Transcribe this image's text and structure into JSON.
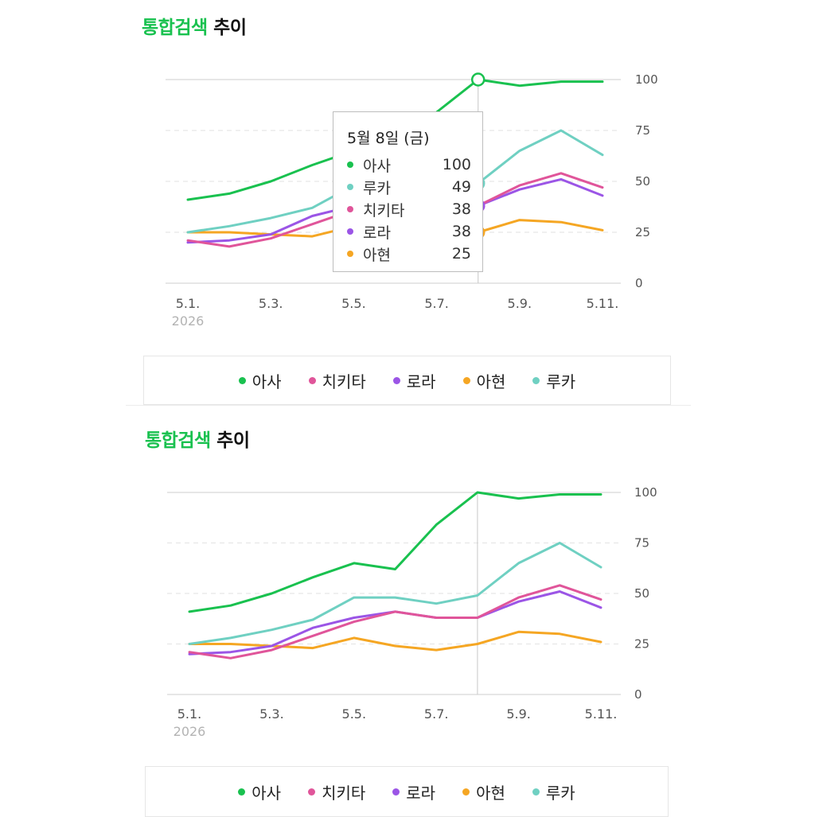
{
  "panels": [
    {
      "title_accent": "통합검색",
      "title_rest": "추이",
      "tooltip": {
        "date": "5월 8일 (금)",
        "rows": [
          {
            "name": "아사",
            "value": "100"
          },
          {
            "name": "루카",
            "value": "49"
          },
          {
            "name": "치키타",
            "value": "38"
          },
          {
            "name": "로라",
            "value": "38"
          },
          {
            "name": "아현",
            "value": "25"
          }
        ]
      }
    },
    {
      "title_accent": "통합검색",
      "title_rest": "추이"
    }
  ],
  "legend": [
    {
      "name": "아사",
      "color": "#19c14f"
    },
    {
      "name": "치키타",
      "color": "#e0559a"
    },
    {
      "name": "로라",
      "color": "#9b55e6"
    },
    {
      "name": "아현",
      "color": "#f5a623"
    },
    {
      "name": "루카",
      "color": "#6fd0c2"
    }
  ],
  "chart_data": [
    {
      "type": "line",
      "title": "통합검색 추이",
      "x": [
        "5.1.",
        "5.2.",
        "5.3.",
        "5.4.",
        "5.5.",
        "5.6.",
        "5.7.",
        "5.8.",
        "5.9.",
        "5.10.",
        "5.11."
      ],
      "x_tick_labels": [
        "5.1.",
        "5.3.",
        "5.5.",
        "5.7.",
        "5.9.",
        "5.11."
      ],
      "x_year_label": "2026",
      "y_ticks": [
        "0",
        "25",
        "50",
        "75",
        "100"
      ],
      "ylim": [
        0,
        100
      ],
      "grid": true,
      "legend_position": "bottom",
      "highlight_index": 7,
      "series": [
        {
          "name": "아사",
          "color": "#19c14f",
          "values": [
            41,
            44,
            50,
            58,
            65,
            62,
            84,
            100,
            97,
            99,
            99
          ]
        },
        {
          "name": "루카",
          "color": "#6fd0c2",
          "values": [
            25,
            28,
            32,
            37,
            48,
            48,
            45,
            49,
            65,
            75,
            63
          ]
        },
        {
          "name": "치키타",
          "color": "#e0559a",
          "values": [
            21,
            18,
            22,
            29,
            36,
            41,
            38,
            38,
            48,
            54,
            47
          ]
        },
        {
          "name": "로라",
          "color": "#9b55e6",
          "values": [
            20,
            21,
            24,
            33,
            38,
            41,
            38,
            38,
            46,
            51,
            43
          ]
        },
        {
          "name": "아현",
          "color": "#f5a623",
          "values": [
            25,
            25,
            24,
            23,
            28,
            24,
            22,
            25,
            31,
            30,
            26
          ]
        }
      ]
    },
    {
      "type": "line",
      "title": "통합검색 추이",
      "x": [
        "5.1.",
        "5.2.",
        "5.3.",
        "5.4.",
        "5.5.",
        "5.6.",
        "5.7.",
        "5.8.",
        "5.9.",
        "5.10.",
        "5.11."
      ],
      "x_tick_labels": [
        "5.1.",
        "5.3.",
        "5.5.",
        "5.7.",
        "5.9.",
        "5.11."
      ],
      "x_year_label": "2026",
      "y_ticks": [
        "0",
        "25",
        "50",
        "75",
        "100"
      ],
      "ylim": [
        0,
        100
      ],
      "grid": true,
      "legend_position": "bottom",
      "highlight_index": 7,
      "series": [
        {
          "name": "아사",
          "color": "#19c14f",
          "values": [
            41,
            44,
            50,
            58,
            65,
            62,
            84,
            100,
            97,
            99,
            99
          ]
        },
        {
          "name": "루카",
          "color": "#6fd0c2",
          "values": [
            25,
            28,
            32,
            37,
            48,
            48,
            45,
            49,
            65,
            75,
            63
          ]
        },
        {
          "name": "치키타",
          "color": "#e0559a",
          "values": [
            21,
            18,
            22,
            29,
            36,
            41,
            38,
            38,
            48,
            54,
            47
          ]
        },
        {
          "name": "로라",
          "color": "#9b55e6",
          "values": [
            20,
            21,
            24,
            33,
            38,
            41,
            38,
            38,
            46,
            51,
            43
          ]
        },
        {
          "name": "아현",
          "color": "#f5a623",
          "values": [
            25,
            25,
            24,
            23,
            28,
            24,
            22,
            25,
            31,
            30,
            26
          ]
        }
      ]
    }
  ]
}
